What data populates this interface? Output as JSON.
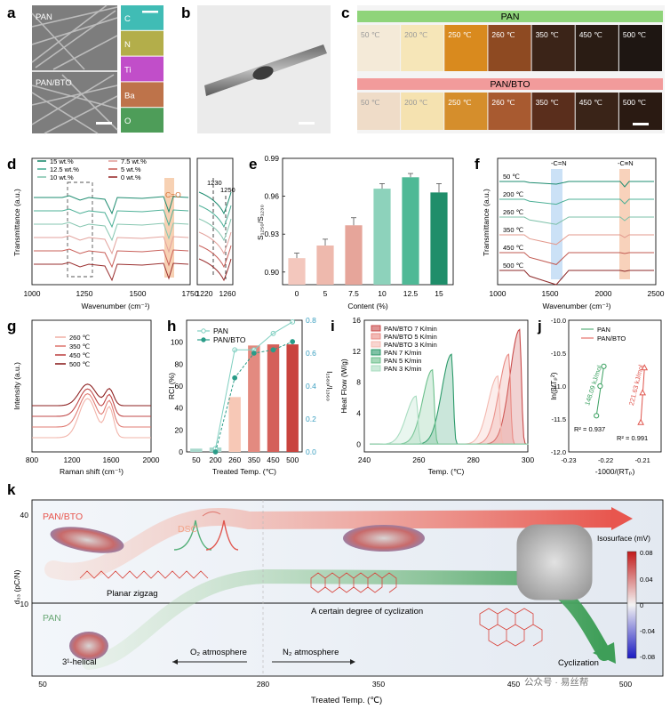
{
  "panels": {
    "a": {
      "label": "a",
      "img1": "PAN",
      "img2": "PAN/BTO",
      "elements": [
        "C",
        "N",
        "Ti",
        "Ba",
        "O"
      ],
      "colors": [
        "#1fb0a8",
        "#a6a02a",
        "#b62fc0",
        "#b35a2a",
        "#2f8c3c"
      ]
    },
    "b": {
      "label": "b"
    },
    "c": {
      "label": "c",
      "row1_title": "PAN",
      "row2_title": "PAN/BTO",
      "row1_color": "#8fd47a",
      "row2_color": "#f29b9b",
      "temps": [
        "50 ℃",
        "200 ℃",
        "250 ℃",
        "260 ℃",
        "350 ℃",
        "450 ℃",
        "500 ℃"
      ],
      "row1_swatches": [
        "#f4ead8",
        "#f6e6b8",
        "#d98a1e",
        "#8e4a22",
        "#3b2418",
        "#2a1c14",
        "#1e1612"
      ],
      "row2_swatches": [
        "#efdcc8",
        "#f5e2b0",
        "#d58e2c",
        "#a85a30",
        "#5a2e1c",
        "#3a2418",
        "#2a1a12"
      ]
    },
    "d": {
      "label": "d",
      "ylabel": "Transmittance (a.u.)",
      "xlabel": "Wavenumber (cm⁻¹)",
      "xticks": [
        "1000",
        "1250",
        "1500",
        "1750"
      ],
      "xticks2": [
        "1220",
        "1260"
      ],
      "marks": [
        "C=O",
        "1230",
        "1250"
      ],
      "legend": [
        "15 wt.%",
        "12.5 wt.%",
        "10 wt.%",
        "7.5 wt.%",
        "5 wt.%",
        "0 wt.%"
      ],
      "series_colors": [
        "#1e8c70",
        "#4db097",
        "#86c6b0",
        "#e3a29c",
        "#c9605a",
        "#9a2f2f"
      ]
    },
    "e": {
      "label": "e",
      "ylabel": "S₁₂₅₀/S₁₂₃₀",
      "xlabel": "Content (%)"
    },
    "f": {
      "label": "f",
      "ylabel": "Transmittance (a.u.)",
      "xlabel": "Wavenumber (cm⁻¹)",
      "xticks": [
        "1000",
        "1500",
        "2000",
        "2500"
      ],
      "marks": [
        "-C=N",
        "-C≡N"
      ],
      "temps": [
        "50 ℃",
        "200 ℃",
        "260 ℃",
        "350 ℃",
        "450 ℃",
        "500 ℃"
      ],
      "series_colors": [
        "#1e8c70",
        "#4db097",
        "#7cc0a8",
        "#e39a8e",
        "#c25a52",
        "#8e2a2a"
      ]
    },
    "g": {
      "label": "g",
      "ylabel": "Intensity (a.u.)",
      "xlabel": "Raman shift (cm⁻¹)",
      "xticks": [
        "800",
        "1200",
        "1600",
        "2000"
      ],
      "legend": [
        "260 ℃",
        "350 ℃",
        "450 ℃",
        "500 ℃"
      ],
      "series_colors": [
        "#f2b4aa",
        "#e07c74",
        "#c04848",
        "#8e2222"
      ]
    },
    "h": {
      "label": "h",
      "ylabel": "RCI (%)",
      "y2label": "I₁₅₈₀/I₁₃₆₀",
      "xlabel": "Treated Temp. (℃)",
      "legend": [
        "PAN",
        "PAN/BTO"
      ],
      "y2ticks": [
        "0.0",
        "0.2",
        "0.4",
        "0.6",
        "0.8"
      ]
    },
    "i": {
      "label": "i",
      "ylabel": "Heat Flow (W/g)",
      "xlabel": "Temp. (℃)",
      "legend": [
        "PAN/BTO 7 K/min",
        "PAN/BTO 5 K/min",
        "PAN/BTO 3 K/min",
        "PAN 7 K/min",
        "PAN 5 K/min",
        "PAN 3 K/min"
      ],
      "series_colors": [
        "#c94a4a",
        "#e98a84",
        "#f4b9b0",
        "#2c9a6a",
        "#6cc08c",
        "#a8dcc0"
      ]
    },
    "j": {
      "label": "j",
      "ylabel": "ln(β/Tₚ²)",
      "xlabel": "-1000/(RTₚ)",
      "legend": [
        "PAN",
        "PAN/BTO"
      ],
      "ann": [
        "148.09 kJ/mol",
        "221.63 kJ/mol",
        "R² = 0.937",
        "R² = 0.991"
      ]
    },
    "k": {
      "label": "k",
      "ylabel": "d₃₃ (pC/N)",
      "xlabel": "Treated Temp. (℃)",
      "yticks": [
        "40",
        "10"
      ],
      "xticks": [
        "50",
        "280",
        "350",
        "450",
        "500"
      ],
      "pan_bto": "PAN/BTO",
      "pan": "PAN",
      "dsc": "DSC",
      "planar": "Planar zigzag",
      "helical": "3¹-helical",
      "cycl_partial": "A certain degree of cyclization",
      "cycl_full": "Cyclization",
      "o2": "O₂ atmosphere",
      "n2": "N₂ atmosphere",
      "iso": "Isosurface (mV)",
      "iso_ticks": [
        "0.08",
        "0.04",
        "0",
        "-0.04",
        "-0.08"
      ],
      "watermark": "公众号 · 易丝帮"
    }
  },
  "chart_data": [
    {
      "type": "bar",
      "panel": "e",
      "categories": [
        "0",
        "5",
        "7.5",
        "10",
        "12.5",
        "15"
      ],
      "values": [
        0.911,
        0.921,
        0.937,
        0.966,
        0.975,
        0.963
      ],
      "errors": [
        0.004,
        0.005,
        0.006,
        0.004,
        0.003,
        0.007
      ],
      "ylim": [
        0.89,
        0.99
      ],
      "yticks": [
        "0.90",
        "0.93",
        "0.96",
        "0.99"
      ],
      "xlabel": "Content (%)",
      "ylabel": "S₁₂₅₀/S₁₂₃₀"
    },
    {
      "type": "bar",
      "panel": "h",
      "categories": [
        "50",
        "200",
        "260",
        "350",
        "450",
        "500"
      ],
      "values": [
        3,
        4,
        50,
        97,
        98,
        98
      ],
      "ylim": [
        0,
        120
      ],
      "yticks": [
        "0",
        "20",
        "40",
        "60",
        "80",
        "100"
      ],
      "series": [
        {
          "name": "PAN",
          "values": [
            null,
            0.02,
            0.62,
            0.62,
            0.72,
            0.79
          ]
        },
        {
          "name": "PAN/BTO",
          "values": [
            null,
            0.0,
            0.45,
            0.6,
            0.62,
            0.67
          ]
        }
      ],
      "y2lim": [
        0,
        0.8
      ]
    },
    {
      "type": "line",
      "panel": "i",
      "xlim": [
        240,
        300
      ],
      "ylim": [
        -1,
        16
      ],
      "xticks": [
        "240",
        "260",
        "280",
        "300"
      ],
      "yticks": [
        "0",
        "4",
        "8",
        "12",
        "16"
      ],
      "series": [
        {
          "name": "PAN/BTO 7 K/min",
          "peak": 297,
          "height": 14.8
        },
        {
          "name": "PAN/BTO 5 K/min",
          "peak": 293,
          "height": 11.6
        },
        {
          "name": "PAN/BTO 3 K/min",
          "peak": 289,
          "height": 8.8
        },
        {
          "name": "PAN 7 K/min",
          "peak": 272,
          "height": 11.6
        },
        {
          "name": "PAN 5 K/min",
          "peak": 265,
          "height": 9.6
        },
        {
          "name": "PAN 3 K/min",
          "peak": 259,
          "height": 6.2
        }
      ]
    },
    {
      "type": "scatter",
      "panel": "j",
      "xlim": [
        -0.23,
        -0.205
      ],
      "ylim": [
        -12.0,
        -10.0
      ],
      "xticks": [
        "-0.23",
        "-0.22",
        "-0.21"
      ],
      "yticks": [
        "-10.0",
        "-10.5",
        "-11.0",
        "-11.5",
        "-12.0"
      ],
      "series": [
        {
          "name": "PAN",
          "x": [
            -0.2225,
            -0.2215,
            -0.2205
          ],
          "y": [
            -11.45,
            -11.0,
            -10.7
          ]
        },
        {
          "name": "PAN/BTO",
          "x": [
            -0.2105,
            -0.21,
            -0.2095
          ],
          "y": [
            -11.55,
            -11.1,
            -10.72
          ]
        }
      ]
    }
  ]
}
